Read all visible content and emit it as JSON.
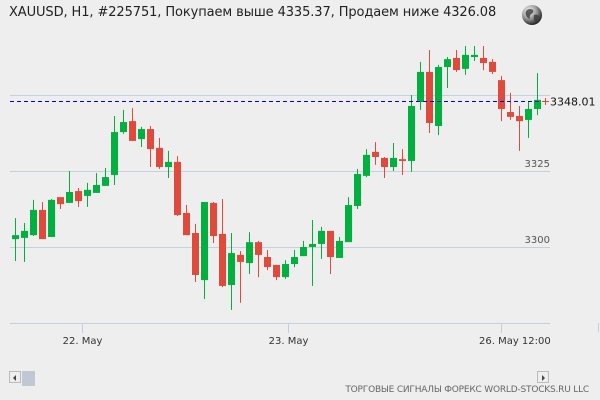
{
  "header": {
    "title": "XAUUSD, H1, #225751, Покупаем выше 4335.37, Продаем ниже 4326.08",
    "icon": "globe-icon"
  },
  "footer": {
    "credit": "ТОРГОВЫЕ СИГНАЛЫ ФОРЕКС WORLD-STOCKS.RU LLC"
  },
  "colors": {
    "up": "#00b140",
    "down": "#e04a3c",
    "grid": "#c3d0de",
    "current_line": "#0000dd",
    "background": "#eeeeee"
  },
  "chart_data": {
    "type": "candlestick",
    "title": "XAUUSD, H1",
    "symbol": "XAUUSD",
    "timeframe": "H1",
    "xlabel": "",
    "ylabel": "",
    "ylim": [
      3280,
      3367
    ],
    "y_ticks": [
      3300,
      3325,
      3350
    ],
    "y_tick_labels": [
      "3300",
      "3325"
    ],
    "x_tick_labels": [
      {
        "label": "22. May",
        "index": 7.5
      },
      {
        "label": "23. May",
        "index": 30.5
      },
      {
        "label": "26. May 12:00",
        "index": 54
      }
    ],
    "current_price": 3348.01,
    "current_price_label": "3348.01",
    "grid": true,
    "ohlc": [
      [
        3302.6,
        3309.5,
        3295.4,
        3303.9
      ],
      [
        3303.0,
        3307.9,
        3295.1,
        3305.3
      ],
      [
        3303.9,
        3315.5,
        3303.6,
        3312.2
      ],
      [
        3312.2,
        3314.8,
        3302.6,
        3302.6
      ],
      [
        3303.3,
        3315.8,
        3303.3,
        3315.5
      ],
      [
        3316.4,
        3316.4,
        3312.5,
        3314.1
      ],
      [
        3314.5,
        3325.0,
        3314.5,
        3318.1
      ],
      [
        3318.4,
        3319.4,
        3313.2,
        3315.1
      ],
      [
        3316.8,
        3321.1,
        3313.2,
        3318.8
      ],
      [
        3317.8,
        3324.3,
        3317.8,
        3320.4
      ],
      [
        3320.1,
        3326.0,
        3320.1,
        3323.0
      ],
      [
        3323.7,
        3343.1,
        3320.4,
        3337.8
      ],
      [
        3337.8,
        3345.1,
        3337.2,
        3341.1
      ],
      [
        3341.4,
        3345.7,
        3334.9,
        3334.9
      ],
      [
        3335.5,
        3339.5,
        3332.9,
        3338.8
      ],
      [
        3338.8,
        3339.8,
        3326.3,
        3332.2
      ],
      [
        3332.6,
        3335.9,
        3325.7,
        3326.3
      ],
      [
        3326.3,
        3331.6,
        3322.7,
        3328.0
      ],
      [
        3328.0,
        3329.9,
        3310.2,
        3310.5
      ],
      [
        3311.2,
        3313.8,
        3303.9,
        3303.9
      ],
      [
        3304.6,
        3307.6,
        3288.5,
        3290.8
      ],
      [
        3289.1,
        3314.8,
        3282.9,
        3314.8
      ],
      [
        3314.5,
        3314.8,
        3301.3,
        3303.6
      ],
      [
        3304.3,
        3315.8,
        3286.8,
        3287.2
      ],
      [
        3287.5,
        3304.6,
        3279.3,
        3298.0
      ],
      [
        3297.4,
        3298.7,
        3281.6,
        3295.1
      ],
      [
        3294.7,
        3304.9,
        3291.1,
        3301.6
      ],
      [
        3301.6,
        3302.0,
        3290.1,
        3297.4
      ],
      [
        3296.7,
        3299.0,
        3292.4,
        3293.4
      ],
      [
        3294.1,
        3294.1,
        3289.1,
        3290.1
      ],
      [
        3290.1,
        3295.7,
        3289.5,
        3294.4
      ],
      [
        3294.4,
        3299.0,
        3293.4,
        3296.7
      ],
      [
        3297.0,
        3302.0,
        3297.0,
        3300.0
      ],
      [
        3300.0,
        3308.9,
        3287.2,
        3301.0
      ],
      [
        3301.0,
        3306.6,
        3296.1,
        3305.3
      ],
      [
        3305.3,
        3305.3,
        3291.1,
        3296.7
      ],
      [
        3296.4,
        3303.3,
        3296.4,
        3302.0
      ],
      [
        3301.6,
        3316.4,
        3301.6,
        3313.8
      ],
      [
        3313.5,
        3325.7,
        3312.5,
        3324.0
      ],
      [
        3323.4,
        3332.2,
        3323.0,
        3330.3
      ],
      [
        3331.3,
        3334.5,
        3327.0,
        3329.6
      ],
      [
        3329.3,
        3329.6,
        3322.7,
        3326.3
      ],
      [
        3326.3,
        3334.2,
        3325.0,
        3329.3
      ],
      [
        3328.9,
        3332.2,
        3323.7,
        3328.3
      ],
      [
        3328.3,
        3350.0,
        3324.7,
        3346.4
      ],
      [
        3347.7,
        3360.9,
        3345.1,
        3357.6
      ],
      [
        3357.6,
        3364.8,
        3337.5,
        3340.8
      ],
      [
        3339.8,
        3359.9,
        3336.8,
        3359.2
      ],
      [
        3359.2,
        3362.5,
        3352.3,
        3361.8
      ],
      [
        3362.2,
        3364.8,
        3357.6,
        3358.2
      ],
      [
        3358.6,
        3366.1,
        3356.6,
        3363.2
      ],
      [
        3362.5,
        3366.1,
        3361.2,
        3363.2
      ],
      [
        3362.2,
        3366.1,
        3358.2,
        3360.5
      ],
      [
        3360.9,
        3361.8,
        3356.9,
        3357.6
      ],
      [
        3354.9,
        3356.3,
        3341.4,
        3345.4
      ],
      [
        3344.4,
        3350.7,
        3341.8,
        3342.8
      ],
      [
        3343.1,
        3346.4,
        3331.6,
        3341.4
      ],
      [
        3341.8,
        3348.0,
        3335.9,
        3345.4
      ],
      [
        3345.4,
        3357.2,
        3343.4,
        3348.4
      ]
    ]
  }
}
